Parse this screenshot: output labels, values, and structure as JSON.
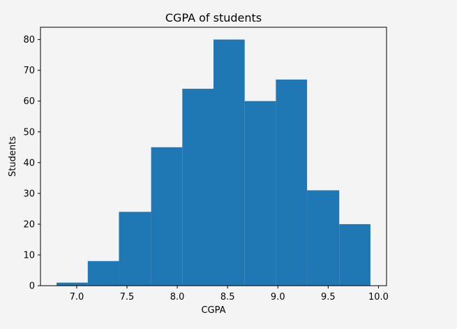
{
  "chart_data": {
    "type": "bar",
    "title": "CGPA of students",
    "xlabel": "CGPA",
    "ylabel": "Students",
    "bins": [
      {
        "x0": 6.8,
        "x1": 7.11,
        "count": 1
      },
      {
        "x0": 7.11,
        "x1": 7.42,
        "count": 8
      },
      {
        "x0": 7.42,
        "x1": 7.74,
        "count": 24
      },
      {
        "x0": 7.74,
        "x1": 8.05,
        "count": 45
      },
      {
        "x0": 8.05,
        "x1": 8.36,
        "count": 64
      },
      {
        "x0": 8.36,
        "x1": 8.67,
        "count": 80
      },
      {
        "x0": 8.67,
        "x1": 8.98,
        "count": 60
      },
      {
        "x0": 8.98,
        "x1": 9.29,
        "count": 67
      },
      {
        "x0": 9.29,
        "x1": 9.61,
        "count": 31
      },
      {
        "x0": 9.61,
        "x1": 9.92,
        "count": 20
      }
    ],
    "xlim": [
      6.64,
      10.08
    ],
    "ylim": [
      0,
      84
    ],
    "xticks": [
      "7.0",
      "7.5",
      "8.0",
      "8.5",
      "9.0",
      "9.5",
      "10.0"
    ],
    "yticks": [
      "0",
      "10",
      "20",
      "30",
      "40",
      "50",
      "60",
      "70",
      "80"
    ],
    "bar_color": "#1f77b4",
    "plot_background": "#f4f4f4",
    "grid": false,
    "legend": false
  }
}
